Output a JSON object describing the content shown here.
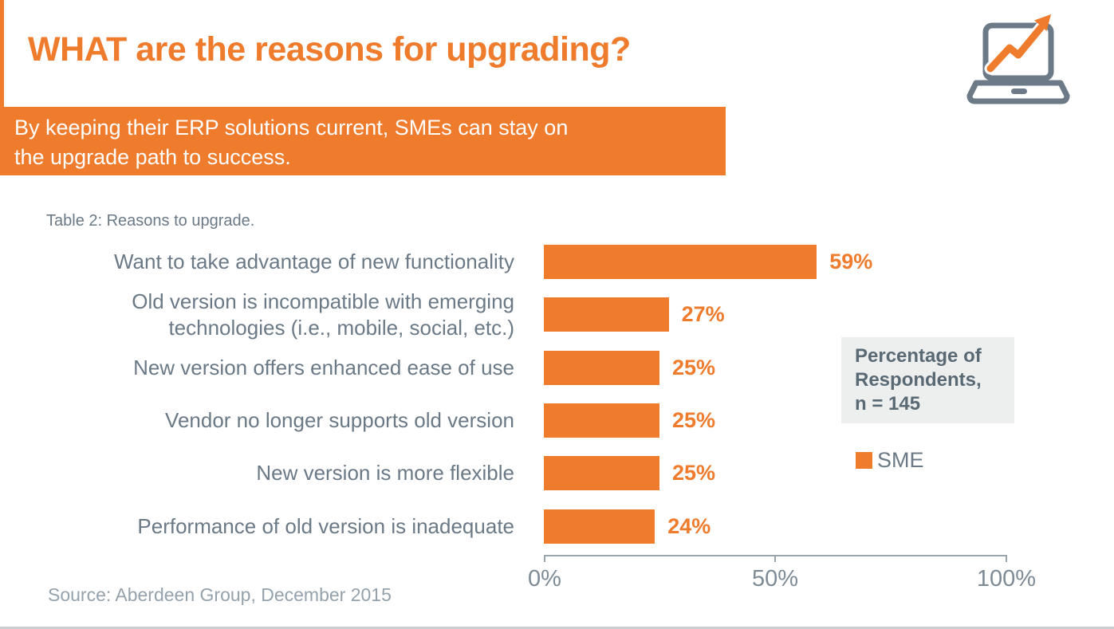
{
  "page": {
    "title": "WHAT are the reasons for upgrading?",
    "banner_text": "By keeping their ERP solutions current, SMEs can stay on\nthe upgrade path to success.",
    "source": "Source: Aberdeen Group, December 2015"
  },
  "icons": {
    "laptop_trend_icon": "laptop with rising zigzag trend arrow"
  },
  "colors": {
    "accent_orange": "#ef7b2d",
    "label_gray": "#6b7987",
    "legend_text_gray": "#5a6a75",
    "legend_box_bg": "#edeeee",
    "axis_gray": "#9aa4ad",
    "tick_label_gray": "#7e8b96",
    "source_gray": "#95a1ab",
    "banner_text_color": "#ffffff"
  },
  "chart_data": {
    "type": "bar",
    "orientation": "horizontal",
    "caption": "Table 2: Reasons to upgrade.",
    "categories": [
      "Want to take advantage of new functionality",
      "Old version is incompatible with emerging technologies (i.e., mobile, social, etc.)",
      "New version offers enhanced ease of use",
      "Vendor no longer supports old version",
      "New version is more flexible",
      "Performance of old version is inadequate"
    ],
    "values": [
      59,
      27,
      25,
      25,
      25,
      24
    ],
    "value_labels": [
      "59%",
      "27%",
      "25%",
      "25%",
      "25%",
      "24%"
    ],
    "series_name": "SME",
    "legend_note": "Percentage of\nRespondents,\nn = 145",
    "xlabel": "",
    "ylabel": "",
    "xlim": [
      0,
      100
    ],
    "x_ticks": [
      "0%",
      "50%",
      "100%"
    ],
    "grid": false,
    "legend_position": "right"
  }
}
